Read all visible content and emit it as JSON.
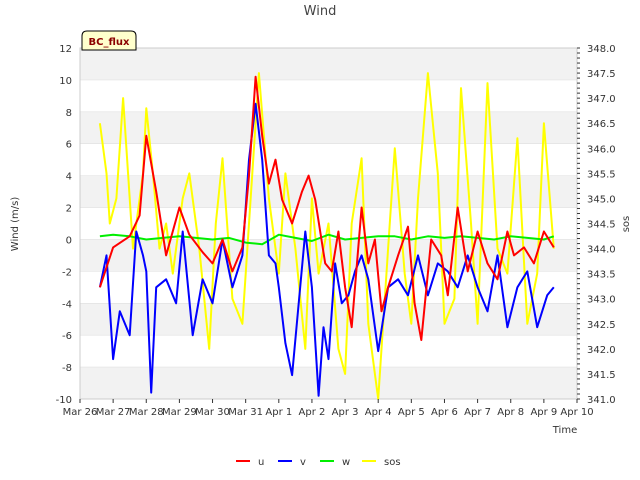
{
  "chart_data": {
    "type": "line",
    "title": "Wind",
    "xlabel": "Time",
    "ylabel": "Wind (m/s)",
    "y2label": "sos",
    "site_label": "BC_flux",
    "x_ticks": [
      "Mar 26",
      "Mar 27",
      "Mar 28",
      "Mar 29",
      "Mar 30",
      "Mar 31",
      "Apr 1",
      "Apr 2",
      "Apr 3",
      "Apr 4",
      "Apr 5",
      "Apr 6",
      "Apr 7",
      "Apr 8",
      "Apr 9",
      "Apr 10"
    ],
    "x_range_days": [
      0,
      15
    ],
    "ylim": [
      -10,
      12
    ],
    "y_ticks": [
      -10,
      -8,
      -6,
      -4,
      -2,
      0,
      2,
      4,
      6,
      8,
      10,
      12
    ],
    "y2lim": [
      341.0,
      348.0
    ],
    "y2_ticks": [
      "341.0",
      "341.5",
      "342.0",
      "342.5",
      "343.0",
      "343.5",
      "344.0",
      "344.5",
      "345.0",
      "345.5",
      "346.0",
      "346.5",
      "347.0",
      "347.5",
      "348.0"
    ],
    "grid": "horizontal bands",
    "legend_position": "bottom-center",
    "series": [
      {
        "name": "u",
        "color": "#ff0000",
        "axis": "left",
        "x": [
          0.6,
          1.0,
          1.5,
          1.8,
          2.0,
          2.3,
          2.6,
          3.0,
          3.3,
          3.7,
          4.0,
          4.3,
          4.6,
          4.9,
          5.1,
          5.3,
          5.5,
          5.7,
          5.9,
          6.1,
          6.4,
          6.7,
          6.9,
          7.1,
          7.4,
          7.6,
          7.8,
          8.0,
          8.2,
          8.5,
          8.7,
          8.9,
          9.1,
          9.3,
          9.6,
          9.9,
          10.1,
          10.3,
          10.6,
          10.9,
          11.1,
          11.4,
          11.7,
          12.0,
          12.3,
          12.6,
          12.9,
          13.1,
          13.4,
          13.7,
          14.0,
          14.3
        ],
        "y": [
          -3.0,
          -0.5,
          0.2,
          1.5,
          6.5,
          3.0,
          -1.0,
          2.0,
          0.3,
          -0.8,
          -1.5,
          0.0,
          -2.0,
          -0.5,
          4.0,
          10.2,
          6.5,
          3.5,
          5.0,
          2.5,
          1.0,
          3.0,
          4.0,
          2.5,
          -1.5,
          -2.0,
          0.5,
          -3.0,
          -5.5,
          2.0,
          -1.5,
          0.0,
          -4.5,
          -3.0,
          -1.0,
          0.8,
          -4.0,
          -6.3,
          0.0,
          -1.0,
          -3.5,
          2.0,
          -2.0,
          0.5,
          -1.5,
          -2.5,
          0.5,
          -1.0,
          -0.5,
          -1.5,
          0.5,
          -0.5
        ]
      },
      {
        "name": "v",
        "color": "#0000ff",
        "axis": "left",
        "x": [
          0.6,
          0.8,
          1.0,
          1.2,
          1.5,
          1.7,
          1.9,
          2.0,
          2.15,
          2.3,
          2.6,
          2.9,
          3.1,
          3.4,
          3.7,
          4.0,
          4.3,
          4.6,
          4.9,
          5.1,
          5.3,
          5.5,
          5.7,
          5.9,
          6.0,
          6.2,
          6.4,
          6.6,
          6.8,
          7.0,
          7.2,
          7.35,
          7.5,
          7.7,
          7.9,
          8.1,
          8.3,
          8.5,
          8.7,
          9.0,
          9.3,
          9.6,
          9.9,
          10.2,
          10.5,
          10.8,
          11.1,
          11.4,
          11.7,
          12.0,
          12.3,
          12.6,
          12.9,
          13.2,
          13.5,
          13.8,
          14.1,
          14.3
        ],
        "y": [
          -3.0,
          -1.0,
          -7.5,
          -4.5,
          -6.0,
          0.5,
          -1.0,
          -2.0,
          -9.6,
          -3.0,
          -2.5,
          -4.0,
          0.5,
          -6.0,
          -2.5,
          -4.0,
          0.0,
          -3.0,
          -1.0,
          5.0,
          8.5,
          5.0,
          -1.0,
          -1.5,
          -3.0,
          -6.5,
          -8.5,
          -4.0,
          0.5,
          -3.0,
          -9.8,
          -5.5,
          -7.5,
          -1.5,
          -4.0,
          -3.5,
          -2.0,
          -1.0,
          -2.5,
          -7.0,
          -3.0,
          -2.5,
          -3.5,
          -1.0,
          -3.5,
          -1.5,
          -2.0,
          -3.0,
          -1.0,
          -3.0,
          -4.5,
          -1.0,
          -5.5,
          -3.0,
          -2.0,
          -5.5,
          -3.5,
          -3.0
        ]
      },
      {
        "name": "w",
        "color": "#00ee00",
        "axis": "left",
        "x": [
          0.6,
          1.0,
          1.5,
          2.0,
          2.5,
          3.0,
          3.5,
          4.0,
          4.5,
          5.0,
          5.5,
          6.0,
          6.5,
          7.0,
          7.5,
          8.0,
          8.5,
          9.0,
          9.5,
          10.0,
          10.5,
          11.0,
          11.5,
          12.0,
          12.5,
          13.0,
          13.5,
          14.0,
          14.3
        ],
        "y": [
          0.2,
          0.3,
          0.2,
          0.0,
          0.1,
          0.2,
          0.1,
          0.0,
          0.1,
          -0.2,
          -0.3,
          0.3,
          0.1,
          -0.1,
          0.3,
          0.0,
          0.1,
          0.2,
          0.2,
          0.0,
          0.2,
          0.1,
          0.2,
          0.1,
          0.0,
          0.2,
          0.1,
          0.0,
          0.2
        ]
      },
      {
        "name": "sos",
        "color": "#ffff00",
        "axis": "right",
        "x": [
          0.6,
          0.8,
          0.9,
          1.1,
          1.3,
          1.6,
          1.9,
          2.0,
          2.2,
          2.4,
          2.6,
          2.8,
          3.1,
          3.3,
          3.6,
          3.9,
          4.1,
          4.3,
          4.6,
          4.9,
          5.1,
          5.4,
          5.7,
          6.0,
          6.2,
          6.5,
          6.8,
          7.0,
          7.2,
          7.5,
          7.8,
          8.0,
          8.2,
          8.5,
          8.7,
          9.0,
          9.3,
          9.5,
          9.8,
          10.0,
          10.2,
          10.5,
          10.8,
          11.0,
          11.3,
          11.5,
          11.8,
          12.0,
          12.3,
          12.6,
          12.9,
          13.2,
          13.5,
          13.8,
          14.0,
          14.3
        ],
        "y": [
          346.5,
          345.5,
          344.5,
          345.0,
          347.0,
          344.0,
          345.5,
          346.8,
          345.5,
          344.0,
          344.5,
          343.5,
          345.0,
          345.5,
          344.0,
          342.0,
          344.5,
          345.8,
          343.0,
          342.5,
          344.5,
          347.5,
          345.0,
          343.5,
          345.5,
          344.0,
          342.0,
          345.0,
          343.5,
          344.5,
          342.0,
          341.5,
          344.5,
          345.8,
          342.5,
          341.0,
          344.0,
          346.0,
          343.5,
          342.5,
          345.0,
          347.5,
          345.5,
          342.5,
          343.0,
          347.2,
          344.5,
          342.5,
          347.3,
          344.0,
          343.5,
          346.2,
          342.5,
          343.5,
          346.5,
          344.0
        ]
      }
    ]
  }
}
